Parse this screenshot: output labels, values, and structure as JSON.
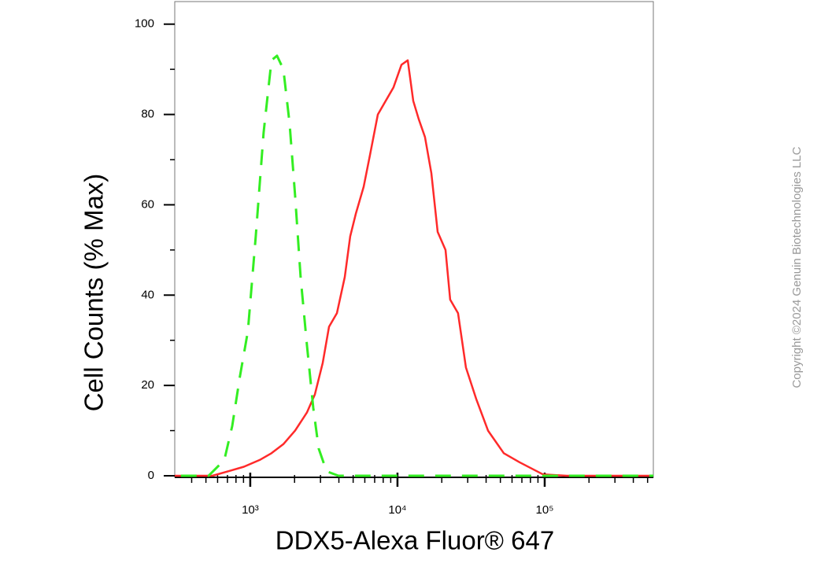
{
  "chart_data": {
    "type": "line",
    "ylabel": "Cell Counts (% Max)",
    "xlabel": "DDX5-Alexa Fluor® 647",
    "xscale": "log",
    "xlim": [
      307,
      547000
    ],
    "ylim": [
      0,
      105
    ],
    "xticks": [
      {
        "value": 1000,
        "label": "10³"
      },
      {
        "value": 10000,
        "label": "10⁴"
      },
      {
        "value": 100000,
        "label": "10⁵"
      }
    ],
    "xminorticks": [
      400,
      500,
      600,
      700,
      800,
      900,
      2000,
      3000,
      4000,
      5000,
      6000,
      7000,
      8000,
      9000,
      20000,
      30000,
      40000,
      50000,
      60000,
      70000,
      80000,
      90000,
      200000,
      300000,
      400000,
      500000
    ],
    "yticks": [
      0,
      20,
      40,
      60,
      80,
      100
    ],
    "yminorticks": [
      10,
      30,
      50,
      70,
      90
    ],
    "series": [
      {
        "color": "#ff2a2a",
        "style": "solid",
        "x": [
          307,
          553,
          708,
          906,
          1159,
          1394,
          1678,
          2018,
          2427,
          2746,
          3106,
          3427,
          3876,
          4385,
          4777,
          5208,
          5891,
          6501,
          7351,
          8318,
          9403,
          10640,
          11740,
          12800,
          13930,
          15380,
          16980,
          18750,
          21200,
          22800,
          25800,
          29170,
          34270,
          41210,
          52720,
          67450,
          97500,
          141200,
          547000
        ],
        "values": [
          0,
          0,
          1,
          2,
          3.5,
          5,
          7,
          10,
          14,
          18,
          25,
          33,
          36,
          44,
          53,
          58,
          64,
          71,
          80,
          83,
          86,
          91,
          92,
          83,
          79,
          75,
          67,
          54,
          50,
          39,
          36,
          24,
          17,
          10,
          5,
          3,
          0.3,
          0,
          0
        ]
      },
      {
        "color": "#33ee22",
        "style": "dashed",
        "x": [
          338,
          521,
          667,
          754,
          851,
          964,
          1090,
          1233,
          1394,
          1519,
          1678,
          1850,
          2018,
          2199,
          2427,
          2679,
          2919,
          3302,
          3972,
          32200,
          547000
        ],
        "values": [
          0,
          0,
          3.5,
          11,
          22,
          32,
          53,
          76,
          92,
          93,
          90,
          78,
          62,
          44,
          29,
          15,
          6,
          1,
          0,
          0,
          0
        ]
      }
    ],
    "copyright": "Copyright ©2024 Genuin Biotechnologies LLC"
  }
}
